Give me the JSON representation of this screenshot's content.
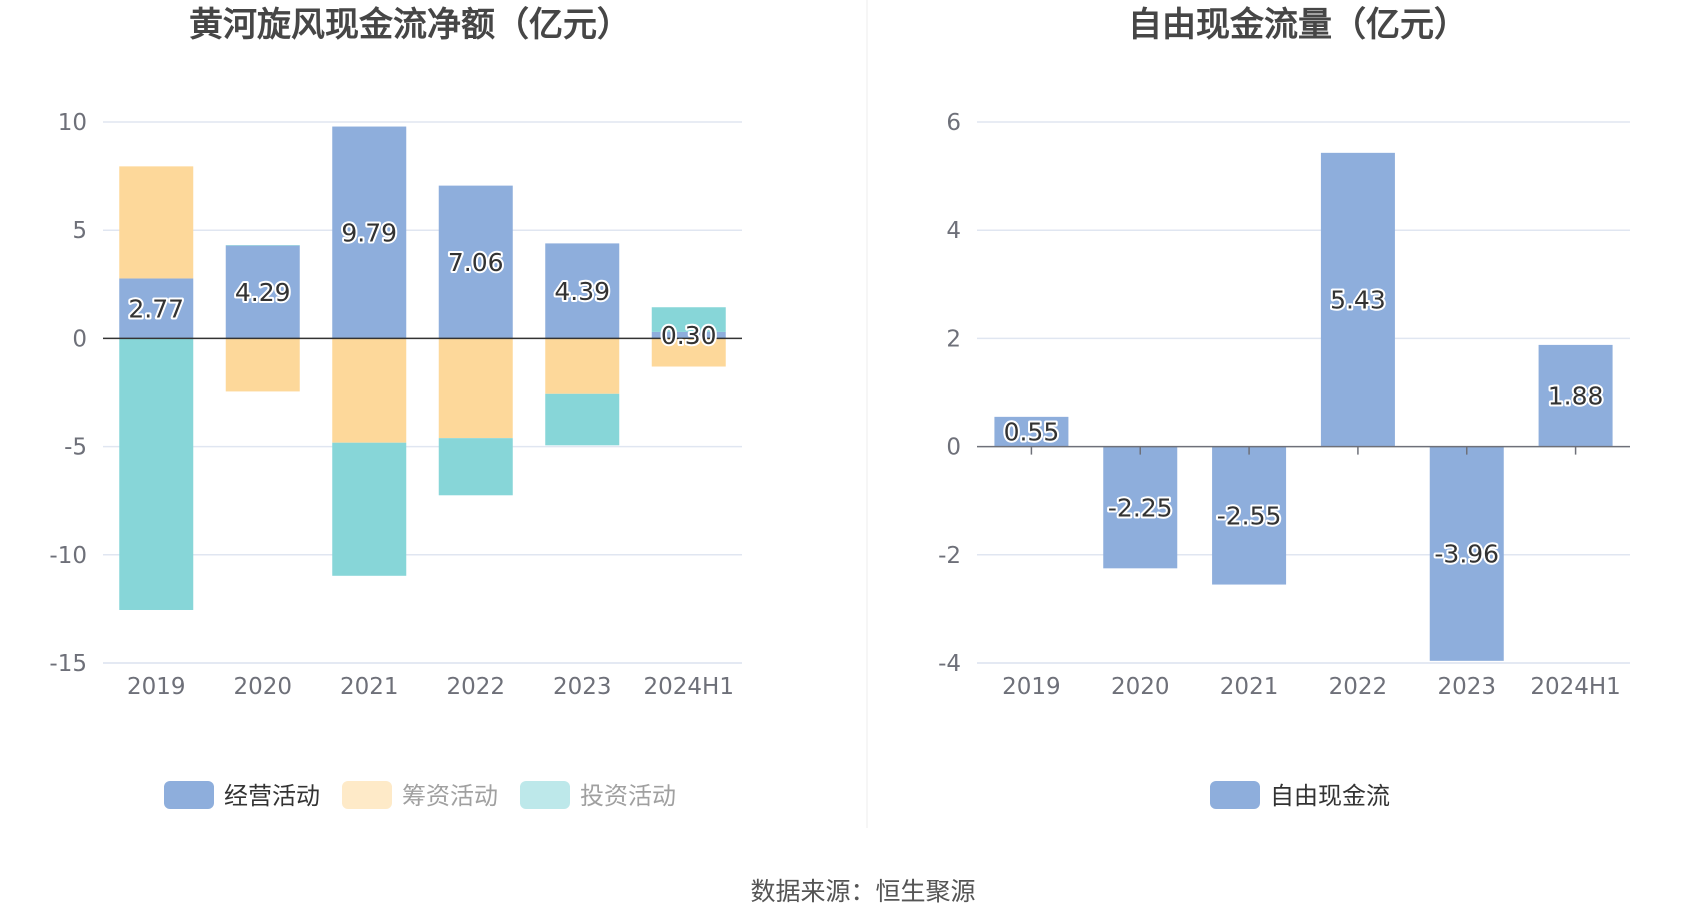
{
  "source": "数据来源：恒生聚源",
  "colors": {
    "operating": "#8eaedc",
    "financing": "#fdd89a",
    "investing": "#87d6d8",
    "free_cash_flow": "#8eaedc",
    "axis_text": "#6e7079",
    "grid": "#e0e6f1",
    "zero_line": "#333333"
  },
  "chart_data": [
    {
      "type": "bar",
      "stacked": true,
      "title": "黄河旋风现金流净额（亿元）",
      "categories": [
        "2019",
        "2020",
        "2021",
        "2022",
        "2023",
        "2024H1"
      ],
      "ylim": [
        -15,
        10
      ],
      "yticks": [
        10,
        5,
        0,
        -5,
        -10,
        -15
      ],
      "grid": true,
      "legend_position": "bottom",
      "series": [
        {
          "name": "经营活动",
          "color_key": "operating",
          "values": [
            2.77,
            4.29,
            9.79,
            7.06,
            4.39,
            0.3
          ],
          "labels": [
            "2.77",
            "4.29",
            "9.79",
            "7.06",
            "4.39",
            "0.30"
          ],
          "legend_dimmed": false
        },
        {
          "name": "筹资活动",
          "color_key": "financing",
          "values": [
            5.18,
            -2.45,
            -4.82,
            -4.61,
            -2.56,
            -1.3
          ],
          "legend_dimmed": true
        },
        {
          "name": "投资活动",
          "color_key": "investing",
          "values": [
            -12.55,
            0.02,
            -6.15,
            -2.64,
            -2.38,
            1.14
          ],
          "legend_dimmed": true
        }
      ]
    },
    {
      "type": "bar",
      "stacked": false,
      "title": "自由现金流量（亿元）",
      "categories": [
        "2019",
        "2020",
        "2021",
        "2022",
        "2023",
        "2024H1"
      ],
      "ylim": [
        -4,
        6
      ],
      "yticks": [
        6,
        4,
        2,
        0,
        -2,
        -4
      ],
      "grid": true,
      "legend_position": "bottom",
      "series": [
        {
          "name": "自由现金流",
          "color_key": "free_cash_flow",
          "values": [
            0.55,
            -2.25,
            -2.55,
            5.43,
            -3.96,
            1.88
          ],
          "labels": [
            "0.55",
            "-2.25",
            "-2.55",
            "5.43",
            "-3.96",
            "1.88"
          ],
          "legend_dimmed": false
        }
      ]
    }
  ]
}
